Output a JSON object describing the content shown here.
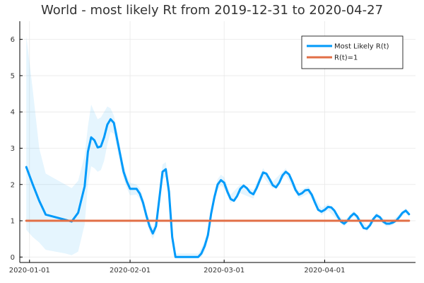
{
  "chart_data": {
    "type": "line",
    "title": "World - most likely Rt from 2019-12-31 to 2020-04-27",
    "xlabel": "",
    "ylabel": "",
    "x_start": "2019-12-31",
    "x_end": "2020-04-27",
    "x_ticks": [
      {
        "date": "2020-01-01",
        "label": "2020-01-01"
      },
      {
        "date": "2020-02-01",
        "label": "2020-02-01"
      },
      {
        "date": "2020-03-01",
        "label": "2020-03-01"
      },
      {
        "date": "2020-04-01",
        "label": "2020-04-01"
      }
    ],
    "y_ticks": [
      0,
      1,
      2,
      3,
      4,
      5,
      6
    ],
    "ylim": [
      -0.15,
      6.5
    ],
    "grid": true,
    "legend_position": "top-right",
    "series": [
      {
        "name": "Most Likely R(t)",
        "color": "#009AFA",
        "points": [
          [
            "2019-12-31",
            2.48
          ],
          [
            "2020-01-02",
            2.0
          ],
          [
            "2020-01-04",
            1.55
          ],
          [
            "2020-01-06",
            1.17
          ],
          [
            "2020-01-14",
            0.98
          ],
          [
            "2020-01-16",
            1.22
          ],
          [
            "2020-01-18",
            1.95
          ],
          [
            "2020-01-19",
            2.9
          ],
          [
            "2020-01-20",
            3.3
          ],
          [
            "2020-01-21",
            3.22
          ],
          [
            "2020-01-22",
            3.02
          ],
          [
            "2020-01-23",
            3.05
          ],
          [
            "2020-01-24",
            3.3
          ],
          [
            "2020-01-25",
            3.65
          ],
          [
            "2020-01-26",
            3.8
          ],
          [
            "2020-01-27",
            3.7
          ],
          [
            "2020-01-28",
            3.25
          ],
          [
            "2020-01-29",
            2.8
          ],
          [
            "2020-01-30",
            2.35
          ],
          [
            "2020-01-31",
            2.08
          ],
          [
            "2020-02-01",
            1.88
          ],
          [
            "2020-02-03",
            1.88
          ],
          [
            "2020-02-04",
            1.75
          ],
          [
            "2020-02-05",
            1.5
          ],
          [
            "2020-02-06",
            1.15
          ],
          [
            "2020-02-07",
            0.85
          ],
          [
            "2020-02-08",
            0.65
          ],
          [
            "2020-02-09",
            0.85
          ],
          [
            "2020-02-10",
            1.6
          ],
          [
            "2020-02-11",
            2.35
          ],
          [
            "2020-02-12",
            2.42
          ],
          [
            "2020-02-13",
            1.8
          ],
          [
            "2020-02-14",
            0.55
          ],
          [
            "2020-02-15",
            0.0
          ],
          [
            "2020-02-16",
            0.0
          ],
          [
            "2020-02-22",
            0.0
          ],
          [
            "2020-02-23",
            0.1
          ],
          [
            "2020-02-24",
            0.3
          ],
          [
            "2020-02-25",
            0.6
          ],
          [
            "2020-02-26",
            1.2
          ],
          [
            "2020-02-27",
            1.65
          ],
          [
            "2020-02-28",
            2.0
          ],
          [
            "2020-02-29",
            2.12
          ],
          [
            "2020-03-01",
            2.05
          ],
          [
            "2020-03-02",
            1.8
          ],
          [
            "2020-03-03",
            1.6
          ],
          [
            "2020-03-04",
            1.55
          ],
          [
            "2020-03-05",
            1.68
          ],
          [
            "2020-03-06",
            1.88
          ],
          [
            "2020-03-07",
            1.97
          ],
          [
            "2020-03-08",
            1.9
          ],
          [
            "2020-03-09",
            1.78
          ],
          [
            "2020-03-10",
            1.73
          ],
          [
            "2020-03-11",
            1.9
          ],
          [
            "2020-03-12",
            2.12
          ],
          [
            "2020-03-13",
            2.33
          ],
          [
            "2020-03-14",
            2.3
          ],
          [
            "2020-03-15",
            2.15
          ],
          [
            "2020-03-16",
            1.98
          ],
          [
            "2020-03-17",
            1.92
          ],
          [
            "2020-03-18",
            2.05
          ],
          [
            "2020-03-19",
            2.25
          ],
          [
            "2020-03-20",
            2.35
          ],
          [
            "2020-03-21",
            2.28
          ],
          [
            "2020-03-22",
            2.08
          ],
          [
            "2020-03-23",
            1.85
          ],
          [
            "2020-03-24",
            1.72
          ],
          [
            "2020-03-25",
            1.76
          ],
          [
            "2020-03-26",
            1.84
          ],
          [
            "2020-03-27",
            1.85
          ],
          [
            "2020-03-28",
            1.72
          ],
          [
            "2020-03-29",
            1.5
          ],
          [
            "2020-03-30",
            1.3
          ],
          [
            "2020-03-31",
            1.25
          ],
          [
            "2020-04-01",
            1.3
          ],
          [
            "2020-04-02",
            1.38
          ],
          [
            "2020-04-03",
            1.37
          ],
          [
            "2020-04-04",
            1.28
          ],
          [
            "2020-04-05",
            1.12
          ],
          [
            "2020-04-06",
            0.98
          ],
          [
            "2020-04-07",
            0.92
          ],
          [
            "2020-04-08",
            1.0
          ],
          [
            "2020-04-09",
            1.12
          ],
          [
            "2020-04-10",
            1.2
          ],
          [
            "2020-04-11",
            1.12
          ],
          [
            "2020-04-12",
            0.95
          ],
          [
            "2020-04-13",
            0.8
          ],
          [
            "2020-04-14",
            0.78
          ],
          [
            "2020-04-15",
            0.88
          ],
          [
            "2020-04-16",
            1.05
          ],
          [
            "2020-04-17",
            1.15
          ],
          [
            "2020-04-18",
            1.1
          ],
          [
            "2020-04-19",
            0.98
          ],
          [
            "2020-04-20",
            0.92
          ],
          [
            "2020-04-21",
            0.92
          ],
          [
            "2020-04-22",
            0.95
          ],
          [
            "2020-04-23",
            1.0
          ],
          [
            "2020-04-24",
            1.1
          ],
          [
            "2020-04-25",
            1.22
          ],
          [
            "2020-04-26",
            1.28
          ],
          [
            "2020-04-27",
            1.18
          ]
        ],
        "band_upper": [
          [
            "2019-12-31",
            6.1
          ],
          [
            "2020-01-02",
            4.6
          ],
          [
            "2020-01-04",
            3.0
          ],
          [
            "2020-01-06",
            2.3
          ],
          [
            "2020-01-12",
            2.0
          ],
          [
            "2020-01-14",
            1.9
          ],
          [
            "2020-01-16",
            2.1
          ],
          [
            "2020-01-18",
            2.8
          ],
          [
            "2020-01-19",
            3.6
          ],
          [
            "2020-01-20",
            4.2
          ],
          [
            "2020-01-21",
            4.0
          ],
          [
            "2020-01-22",
            3.8
          ],
          [
            "2020-01-23",
            3.85
          ],
          [
            "2020-01-24",
            4.0
          ],
          [
            "2020-01-25",
            4.15
          ],
          [
            "2020-01-26",
            4.1
          ],
          [
            "2020-01-27",
            3.9
          ],
          [
            "2020-01-28",
            3.5
          ],
          [
            "2020-01-29",
            3.0
          ],
          [
            "2020-01-30",
            2.55
          ],
          [
            "2020-01-31",
            2.25
          ],
          [
            "2020-02-01",
            2.05
          ],
          [
            "2020-02-03",
            2.0
          ],
          [
            "2020-02-04",
            1.9
          ],
          [
            "2020-02-05",
            1.65
          ],
          [
            "2020-02-06",
            1.3
          ],
          [
            "2020-02-07",
            1.0
          ],
          [
            "2020-02-08",
            0.8
          ],
          [
            "2020-02-09",
            1.0
          ],
          [
            "2020-02-10",
            1.8
          ],
          [
            "2020-02-11",
            2.55
          ],
          [
            "2020-02-12",
            2.62
          ],
          [
            "2020-02-13",
            2.0
          ],
          [
            "2020-02-14",
            0.75
          ],
          [
            "2020-02-15",
            0.1
          ],
          [
            "2020-02-22",
            0.1
          ],
          [
            "2020-02-23",
            0.25
          ],
          [
            "2020-02-24",
            0.45
          ],
          [
            "2020-02-25",
            0.75
          ],
          [
            "2020-02-26",
            1.35
          ],
          [
            "2020-02-27",
            1.8
          ],
          [
            "2020-02-28",
            2.15
          ],
          [
            "2020-02-29",
            2.27
          ],
          [
            "2020-03-01",
            2.2
          ],
          [
            "2020-03-03",
            1.72
          ],
          [
            "2020-03-06",
            2.0
          ],
          [
            "2020-03-10",
            1.85
          ],
          [
            "2020-03-13",
            2.45
          ],
          [
            "2020-03-16",
            2.08
          ],
          [
            "2020-03-20",
            2.45
          ],
          [
            "2020-03-24",
            1.82
          ],
          [
            "2020-03-27",
            1.95
          ],
          [
            "2020-03-31",
            1.35
          ],
          [
            "2020-04-02",
            1.47
          ],
          [
            "2020-04-07",
            1.0
          ],
          [
            "2020-04-10",
            1.28
          ],
          [
            "2020-04-14",
            0.86
          ],
          [
            "2020-04-17",
            1.23
          ],
          [
            "2020-04-20",
            1.0
          ],
          [
            "2020-04-22",
            1.02
          ],
          [
            "2020-04-26",
            1.35
          ],
          [
            "2020-04-27",
            1.25
          ]
        ],
        "band_lower": [
          [
            "2019-12-31",
            0.75
          ],
          [
            "2020-01-02",
            0.55
          ],
          [
            "2020-01-04",
            0.4
          ],
          [
            "2020-01-06",
            0.2
          ],
          [
            "2020-01-12",
            0.1
          ],
          [
            "2020-01-14",
            0.05
          ],
          [
            "2020-01-16",
            0.15
          ],
          [
            "2020-01-18",
            0.9
          ],
          [
            "2020-01-19",
            2.0
          ],
          [
            "2020-01-20",
            2.5
          ],
          [
            "2020-01-21",
            2.45
          ],
          [
            "2020-01-22",
            2.35
          ],
          [
            "2020-01-23",
            2.4
          ],
          [
            "2020-01-24",
            2.65
          ],
          [
            "2020-01-25",
            3.1
          ],
          [
            "2020-01-26",
            3.45
          ],
          [
            "2020-01-27",
            3.4
          ],
          [
            "2020-01-28",
            3.0
          ],
          [
            "2020-01-29",
            2.55
          ],
          [
            "2020-01-30",
            2.15
          ],
          [
            "2020-01-31",
            1.9
          ],
          [
            "2020-02-01",
            1.7
          ],
          [
            "2020-02-03",
            1.72
          ],
          [
            "2020-02-04",
            1.6
          ],
          [
            "2020-02-05",
            1.35
          ],
          [
            "2020-02-06",
            1.0
          ],
          [
            "2020-02-07",
            0.7
          ],
          [
            "2020-02-08",
            0.5
          ],
          [
            "2020-02-09",
            0.7
          ],
          [
            "2020-02-10",
            1.4
          ],
          [
            "2020-02-11",
            2.15
          ],
          [
            "2020-02-12",
            2.22
          ],
          [
            "2020-02-13",
            1.6
          ],
          [
            "2020-02-14",
            0.35
          ],
          [
            "2020-02-15",
            0.0
          ],
          [
            "2020-02-22",
            0.0
          ],
          [
            "2020-02-23",
            0.0
          ],
          [
            "2020-02-24",
            0.15
          ],
          [
            "2020-02-25",
            0.45
          ],
          [
            "2020-02-26",
            1.05
          ],
          [
            "2020-02-27",
            1.5
          ],
          [
            "2020-02-28",
            1.85
          ],
          [
            "2020-02-29",
            1.97
          ],
          [
            "2020-03-01",
            1.9
          ],
          [
            "2020-03-03",
            1.48
          ],
          [
            "2020-03-06",
            1.76
          ],
          [
            "2020-03-10",
            1.61
          ],
          [
            "2020-03-13",
            2.21
          ],
          [
            "2020-03-16",
            1.88
          ],
          [
            "2020-03-20",
            2.25
          ],
          [
            "2020-03-24",
            1.62
          ],
          [
            "2020-03-27",
            1.75
          ],
          [
            "2020-03-31",
            1.15
          ],
          [
            "2020-04-02",
            1.29
          ],
          [
            "2020-04-07",
            0.84
          ],
          [
            "2020-04-10",
            1.12
          ],
          [
            "2020-04-14",
            0.7
          ],
          [
            "2020-04-17",
            1.07
          ],
          [
            "2020-04-20",
            0.84
          ],
          [
            "2020-04-22",
            0.88
          ],
          [
            "2020-04-26",
            1.21
          ],
          [
            "2020-04-27",
            1.11
          ]
        ]
      },
      {
        "name": "R(t)=1",
        "color": "#E26F46",
        "points": [
          [
            "2019-12-31",
            1.0
          ],
          [
            "2020-04-27",
            1.0
          ]
        ]
      }
    ]
  }
}
